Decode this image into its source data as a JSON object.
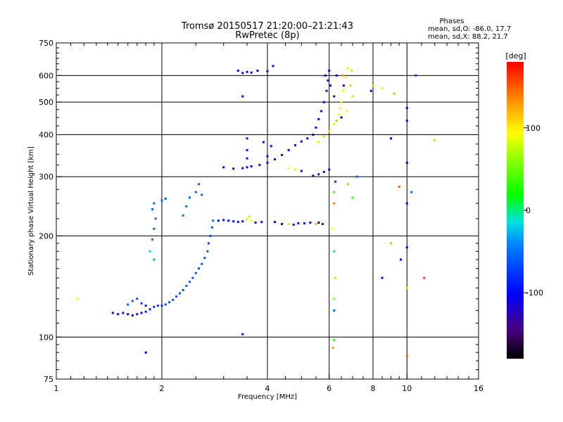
{
  "header": {
    "title": "Tromsø 20150517 21:20:00–21:21:43",
    "subtitle": "RwPretec (8p)",
    "phases_title": "Phases",
    "phases_line1": "mean, sd,O:  -86.0, 17.7",
    "phases_line2": "mean, sd,X:  88.2, 21.7"
  },
  "colorbar": {
    "label": "deg",
    "ticks": [
      {
        "value": 100,
        "label": "100"
      },
      {
        "value": 0,
        "label": "0"
      },
      {
        "value": -100,
        "label": "-100"
      }
    ],
    "range": [
      -180,
      180
    ]
  },
  "chart_data": {
    "type": "scatter",
    "xlabel": "Frequency [MHz]",
    "ylabel": "Stationary phase Virtual Height [km]",
    "xscale": "log",
    "yscale": "log",
    "xlim": [
      1,
      16
    ],
    "ylim": [
      75,
      750
    ],
    "xticks": [
      {
        "value": 1,
        "label": "1"
      },
      {
        "value": 2,
        "label": "2"
      },
      {
        "value": 4,
        "label": "4"
      },
      {
        "value": 6,
        "label": "6"
      },
      {
        "value": 8,
        "label": "8"
      },
      {
        "value": 10,
        "label": "10"
      },
      {
        "value": 16,
        "label": "16"
      }
    ],
    "yticks": [
      {
        "value": 75,
        "label": "75"
      },
      {
        "value": 100,
        "label": "100"
      },
      {
        "value": 200,
        "label": "200"
      },
      {
        "value": 300,
        "label": "300"
      },
      {
        "value": 400,
        "label": "400"
      },
      {
        "value": 500,
        "label": "500"
      },
      {
        "value": 600,
        "label": "600"
      },
      {
        "value": 750,
        "label": "750"
      }
    ],
    "grid": true,
    "points": [
      {
        "x": 1.45,
        "y": 118,
        "p": -105
      },
      {
        "x": 1.5,
        "y": 117,
        "p": -100
      },
      {
        "x": 1.55,
        "y": 118,
        "p": -108
      },
      {
        "x": 1.6,
        "y": 117,
        "p": -102
      },
      {
        "x": 1.65,
        "y": 116,
        "p": -98
      },
      {
        "x": 1.7,
        "y": 117,
        "p": -104
      },
      {
        "x": 1.75,
        "y": 118,
        "p": -96
      },
      {
        "x": 1.8,
        "y": 119,
        "p": -90
      },
      {
        "x": 1.85,
        "y": 121,
        "p": -85
      },
      {
        "x": 1.9,
        "y": 123,
        "p": -80
      },
      {
        "x": 1.95,
        "y": 124,
        "p": -78
      },
      {
        "x": 2.0,
        "y": 124,
        "p": -82
      },
      {
        "x": 2.05,
        "y": 125,
        "p": -75
      },
      {
        "x": 2.1,
        "y": 127,
        "p": -70
      },
      {
        "x": 2.15,
        "y": 129,
        "p": -72
      },
      {
        "x": 2.2,
        "y": 132,
        "p": -68
      },
      {
        "x": 2.25,
        "y": 135,
        "p": -65
      },
      {
        "x": 2.3,
        "y": 138,
        "p": -70
      },
      {
        "x": 2.35,
        "y": 142,
        "p": -66
      },
      {
        "x": 2.4,
        "y": 146,
        "p": -62
      },
      {
        "x": 2.45,
        "y": 150,
        "p": -68
      },
      {
        "x": 2.5,
        "y": 155,
        "p": -64
      },
      {
        "x": 2.55,
        "y": 160,
        "p": -70
      },
      {
        "x": 2.6,
        "y": 165,
        "p": -66
      },
      {
        "x": 2.65,
        "y": 172,
        "p": -72
      },
      {
        "x": 2.7,
        "y": 180,
        "p": -68
      },
      {
        "x": 2.72,
        "y": 190,
        "p": -74
      },
      {
        "x": 2.75,
        "y": 200,
        "p": -70
      },
      {
        "x": 2.78,
        "y": 212,
        "p": -64
      },
      {
        "x": 2.8,
        "y": 222,
        "p": -60
      },
      {
        "x": 1.6,
        "y": 125,
        "p": -70
      },
      {
        "x": 1.65,
        "y": 128,
        "p": -66
      },
      {
        "x": 1.7,
        "y": 130,
        "p": -72
      },
      {
        "x": 1.75,
        "y": 126,
        "p": -80
      },
      {
        "x": 1.8,
        "y": 124,
        "p": -88
      },
      {
        "x": 1.88,
        "y": 195,
        "p": -55
      },
      {
        "x": 1.9,
        "y": 210,
        "p": -60
      },
      {
        "x": 1.92,
        "y": 225,
        "p": -58
      },
      {
        "x": 1.88,
        "y": 240,
        "p": -62
      },
      {
        "x": 1.9,
        "y": 250,
        "p": -65
      },
      {
        "x": 1.9,
        "y": 170,
        "p": -40
      },
      {
        "x": 1.85,
        "y": 180,
        "p": -20
      },
      {
        "x": 2.0,
        "y": 255,
        "p": -60
      },
      {
        "x": 2.05,
        "y": 258,
        "p": -64
      },
      {
        "x": 2.3,
        "y": 230,
        "p": -56
      },
      {
        "x": 2.35,
        "y": 245,
        "p": -60
      },
      {
        "x": 2.4,
        "y": 260,
        "p": -62
      },
      {
        "x": 2.5,
        "y": 270,
        "p": -58
      },
      {
        "x": 2.55,
        "y": 285,
        "p": -64
      },
      {
        "x": 2.6,
        "y": 265,
        "p": -66
      },
      {
        "x": 2.9,
        "y": 222,
        "p": -110
      },
      {
        "x": 3.0,
        "y": 223,
        "p": -105
      },
      {
        "x": 3.1,
        "y": 222,
        "p": -100
      },
      {
        "x": 3.2,
        "y": 221,
        "p": -98
      },
      {
        "x": 3.3,
        "y": 220,
        "p": -95
      },
      {
        "x": 3.4,
        "y": 221,
        "p": -100
      },
      {
        "x": 3.5,
        "y": 224,
        "p": 70
      },
      {
        "x": 3.55,
        "y": 228,
        "p": 60
      },
      {
        "x": 3.6,
        "y": 222,
        "p": 80
      },
      {
        "x": 3.7,
        "y": 219,
        "p": -100
      },
      {
        "x": 3.85,
        "y": 220,
        "p": -95
      },
      {
        "x": 4.2,
        "y": 220,
        "p": -100
      },
      {
        "x": 4.4,
        "y": 217,
        "p": -102
      },
      {
        "x": 4.6,
        "y": 217,
        "p": 60
      },
      {
        "x": 4.75,
        "y": 216,
        "p": -100
      },
      {
        "x": 4.9,
        "y": 218,
        "p": -98
      },
      {
        "x": 5.1,
        "y": 218,
        "p": -104
      },
      {
        "x": 5.3,
        "y": 219,
        "p": -100
      },
      {
        "x": 5.5,
        "y": 217,
        "p": 120
      },
      {
        "x": 5.6,
        "y": 219,
        "p": -170
      },
      {
        "x": 5.75,
        "y": 217,
        "p": -95
      },
      {
        "x": 3.0,
        "y": 320,
        "p": -100
      },
      {
        "x": 3.2,
        "y": 317,
        "p": -105
      },
      {
        "x": 3.4,
        "y": 318,
        "p": -110
      },
      {
        "x": 3.5,
        "y": 320,
        "p": -100
      },
      {
        "x": 3.6,
        "y": 322,
        "p": -105
      },
      {
        "x": 3.8,
        "y": 325,
        "p": -100
      },
      {
        "x": 4.0,
        "y": 330,
        "p": -102
      },
      {
        "x": 4.2,
        "y": 338,
        "p": -100
      },
      {
        "x": 4.4,
        "y": 348,
        "p": -105
      },
      {
        "x": 4.6,
        "y": 360,
        "p": -100
      },
      {
        "x": 4.8,
        "y": 372,
        "p": -102
      },
      {
        "x": 5.0,
        "y": 382,
        "p": -105
      },
      {
        "x": 5.2,
        "y": 390,
        "p": -100
      },
      {
        "x": 5.4,
        "y": 400,
        "p": -110
      },
      {
        "x": 5.5,
        "y": 420,
        "p": -108
      },
      {
        "x": 5.6,
        "y": 445,
        "p": -105
      },
      {
        "x": 5.7,
        "y": 470,
        "p": -100
      },
      {
        "x": 5.8,
        "y": 500,
        "p": -110
      },
      {
        "x": 5.9,
        "y": 540,
        "p": -105
      },
      {
        "x": 5.95,
        "y": 580,
        "p": -108
      },
      {
        "x": 6.0,
        "y": 620,
        "p": -100
      },
      {
        "x": 5.85,
        "y": 600,
        "p": -102
      },
      {
        "x": 6.05,
        "y": 560,
        "p": -110
      },
      {
        "x": 3.5,
        "y": 390,
        "p": -95
      },
      {
        "x": 3.5,
        "y": 360,
        "p": -98
      },
      {
        "x": 3.5,
        "y": 340,
        "p": -100
      },
      {
        "x": 3.9,
        "y": 380,
        "p": -100
      },
      {
        "x": 4.1,
        "y": 370,
        "p": -95
      },
      {
        "x": 4.0,
        "y": 345,
        "p": -100
      },
      {
        "x": 4.6,
        "y": 318,
        "p": 85
      },
      {
        "x": 4.8,
        "y": 315,
        "p": 70
      },
      {
        "x": 5.0,
        "y": 312,
        "p": -100
      },
      {
        "x": 5.4,
        "y": 302,
        "p": -130
      },
      {
        "x": 5.6,
        "y": 305,
        "p": -130
      },
      {
        "x": 5.8,
        "y": 310,
        "p": -125
      },
      {
        "x": 6.0,
        "y": 315,
        "p": -120
      },
      {
        "x": 5.6,
        "y": 380,
        "p": 100
      },
      {
        "x": 5.8,
        "y": 395,
        "p": 110
      },
      {
        "x": 6.0,
        "y": 410,
        "p": 95
      },
      {
        "x": 6.2,
        "y": 430,
        "p": 100
      },
      {
        "x": 6.4,
        "y": 460,
        "p": 90
      },
      {
        "x": 6.5,
        "y": 500,
        "p": 100
      },
      {
        "x": 6.6,
        "y": 540,
        "p": 85
      },
      {
        "x": 6.7,
        "y": 590,
        "p": 95
      },
      {
        "x": 6.8,
        "y": 630,
        "p": 100
      },
      {
        "x": 6.9,
        "y": 560,
        "p": 110
      },
      {
        "x": 7.0,
        "y": 520,
        "p": 105
      },
      {
        "x": 6.3,
        "y": 440,
        "p": 120
      },
      {
        "x": 6.45,
        "y": 480,
        "p": 80
      },
      {
        "x": 6.55,
        "y": 600,
        "p": 130
      },
      {
        "x": 6.75,
        "y": 470,
        "p": 90
      },
      {
        "x": 6.95,
        "y": 620,
        "p": 60
      },
      {
        "x": 6.2,
        "y": 520,
        "p": -150
      },
      {
        "x": 6.5,
        "y": 450,
        "p": -170
      },
      {
        "x": 6.3,
        "y": 600,
        "p": -100
      },
      {
        "x": 6.6,
        "y": 560,
        "p": -120
      },
      {
        "x": 3.3,
        "y": 620,
        "p": -100
      },
      {
        "x": 3.4,
        "y": 610,
        "p": -95
      },
      {
        "x": 3.5,
        "y": 615,
        "p": -100
      },
      {
        "x": 3.6,
        "y": 612,
        "p": -105
      },
      {
        "x": 3.75,
        "y": 620,
        "p": -100
      },
      {
        "x": 4.0,
        "y": 618,
        "p": -98
      },
      {
        "x": 4.15,
        "y": 640,
        "p": -100
      },
      {
        "x": 3.4,
        "y": 520,
        "p": -100
      },
      {
        "x": 3.4,
        "y": 102,
        "p": -100
      },
      {
        "x": 1.8,
        "y": 90,
        "p": -100
      },
      {
        "x": 1.15,
        "y": 130,
        "p": 100
      },
      {
        "x": 6.2,
        "y": 270,
        "p": 20
      },
      {
        "x": 6.25,
        "y": 290,
        "p": -80
      },
      {
        "x": 6.2,
        "y": 250,
        "p": 140
      },
      {
        "x": 6.15,
        "y": 210,
        "p": 90
      },
      {
        "x": 6.2,
        "y": 180,
        "p": -20
      },
      {
        "x": 6.25,
        "y": 150,
        "p": 110
      },
      {
        "x": 6.2,
        "y": 130,
        "p": 40
      },
      {
        "x": 6.2,
        "y": 120,
        "p": -60
      },
      {
        "x": 6.2,
        "y": 98,
        "p": 10
      },
      {
        "x": 6.15,
        "y": 93,
        "p": 130
      },
      {
        "x": 6.8,
        "y": 285,
        "p": 120
      },
      {
        "x": 7.2,
        "y": 300,
        "p": -60
      },
      {
        "x": 7.0,
        "y": 260,
        "p": 20
      },
      {
        "x": 7.9,
        "y": 540,
        "p": -100
      },
      {
        "x": 8.0,
        "y": 560,
        "p": 60
      },
      {
        "x": 8.5,
        "y": 550,
        "p": 100
      },
      {
        "x": 9.2,
        "y": 530,
        "p": 30
      },
      {
        "x": 9.0,
        "y": 390,
        "p": -100
      },
      {
        "x": 8.5,
        "y": 150,
        "p": -100
      },
      {
        "x": 9.0,
        "y": 190,
        "p": 40
      },
      {
        "x": 9.5,
        "y": 280,
        "p": 150
      },
      {
        "x": 9.6,
        "y": 170,
        "p": -100
      },
      {
        "x": 10.0,
        "y": 480,
        "p": -100
      },
      {
        "x": 10.0,
        "y": 440,
        "p": -100
      },
      {
        "x": 10.0,
        "y": 330,
        "p": -100
      },
      {
        "x": 10.0,
        "y": 250,
        "p": -100
      },
      {
        "x": 10.0,
        "y": 185,
        "p": -100
      },
      {
        "x": 10.0,
        "y": 140,
        "p": 60
      },
      {
        "x": 10.0,
        "y": 88,
        "p": 150
      },
      {
        "x": 10.3,
        "y": 270,
        "p": -60
      },
      {
        "x": 10.6,
        "y": 600,
        "p": -80
      },
      {
        "x": 11.2,
        "y": 150,
        "p": 160
      },
      {
        "x": 12.0,
        "y": 385,
        "p": 110
      }
    ]
  }
}
